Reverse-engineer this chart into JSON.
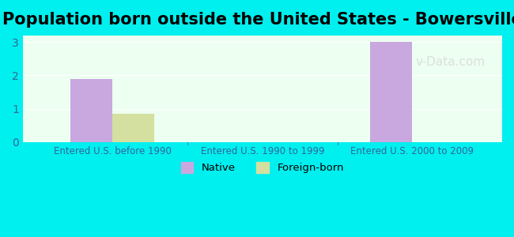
{
  "title": "Population born outside the United States - Bowersville",
  "categories": [
    "Entered U.S. before 1990",
    "Entered U.S. 1990 to 1999",
    "Entered U.S. 2000 to 2009"
  ],
  "native_values": [
    1.9,
    0,
    3.0
  ],
  "foreign_values": [
    0.85,
    0,
    0
  ],
  "native_color": "#c9a8e0",
  "foreign_color": "#d4e0a0",
  "background_color": "#00EFEF",
  "plot_bg_color": "#edfff0",
  "ylim": [
    0,
    3.2
  ],
  "yticks": [
    0,
    1,
    2,
    3
  ],
  "title_fontsize": 15,
  "tick_label_color": "#336699",
  "watermark": "v-Data.com",
  "bar_width": 0.28
}
